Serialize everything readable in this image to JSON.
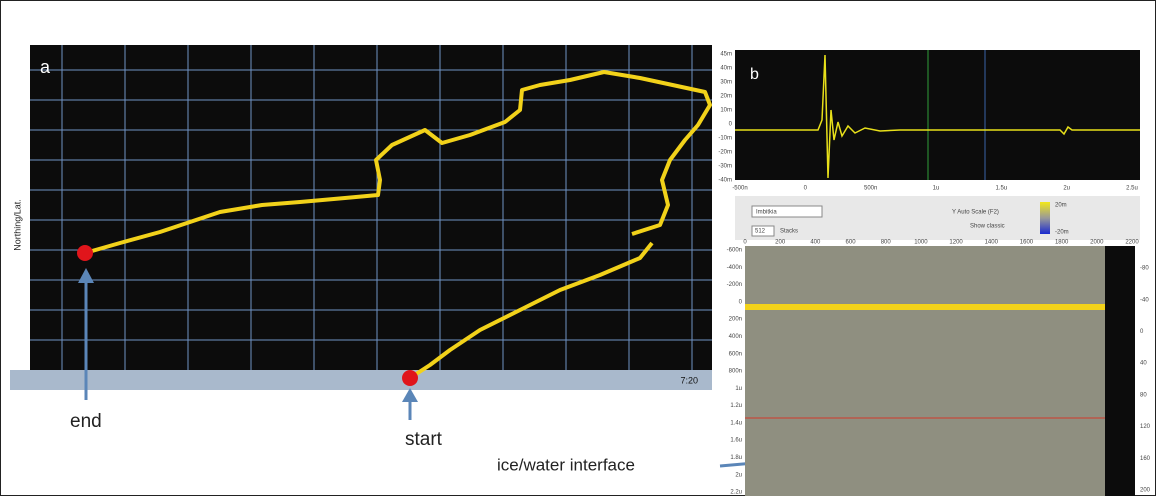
{
  "panel_a": {
    "label": "a",
    "y_axis_title": "Northing/Lat.",
    "clock": "7:20",
    "end_label": "end",
    "start_label": "start"
  },
  "panel_b": {
    "label": "b",
    "waveform_yticks": [
      "45m",
      "40m",
      "30m",
      "20m",
      "10m",
      "0",
      "-10m",
      "-20m",
      "-30m",
      "-40m"
    ],
    "waveform_xticks": [
      "-500n",
      "0",
      "500n",
      "1u",
      "1.5u",
      "2u",
      "2.5u"
    ],
    "toolbar": {
      "mode": "Imbitkia",
      "auto_scale": "Y Auto Scale (F2)",
      "show_classic": "Show classic",
      "stacks_value": "512",
      "stacks": "Stacks",
      "scale_top": "20m",
      "scale_bottom": "-20m"
    },
    "radar_xticks": [
      "0",
      "200",
      "400",
      "600",
      "800",
      "1000",
      "1200",
      "1400",
      "1600",
      "1800",
      "2000",
      "2200"
    ],
    "radar_left_ticks": [
      "-600n",
      "-400n",
      "-200n",
      "0",
      "200n",
      "400n",
      "600n",
      "800n",
      "1u",
      "1.2u",
      "1.4u",
      "1.6u",
      "1.8u",
      "2u",
      "2.2u"
    ],
    "radar_right_ticks": [
      "-80",
      "-40",
      "0",
      "40",
      "80",
      "120",
      "160",
      "200"
    ],
    "interface_label": "ice/water interface"
  }
}
